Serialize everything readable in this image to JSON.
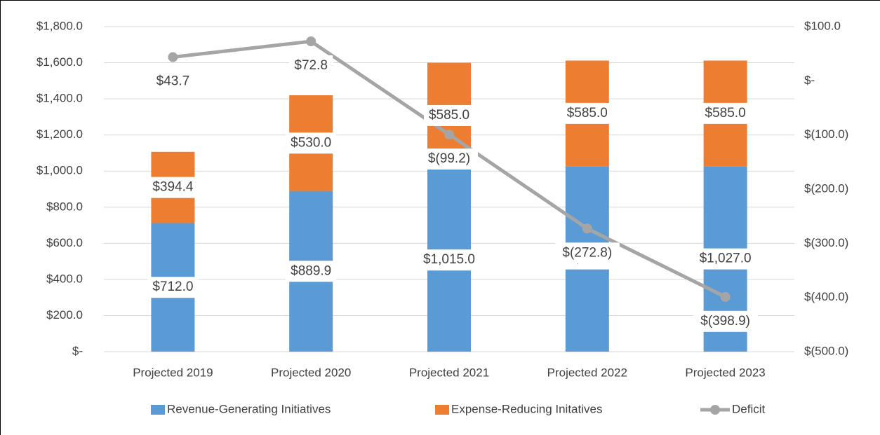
{
  "chart_data": {
    "type": "stacked-bar-line",
    "categories": [
      "Projected 2019",
      "Projected 2020",
      "Projected 2021",
      "Projected 2022",
      "Projected 2023"
    ],
    "series": [
      {
        "name": "Revenue-Generating Initiatives",
        "color": "#5b9bd5",
        "values": [
          712.0,
          889.9,
          1015.0,
          1027.0,
          1027.0
        ],
        "value_labels": [
          "$712.0",
          "$889.9",
          "$1,015.0",
          "$1,027.0",
          "$1,027.0"
        ]
      },
      {
        "name": "Expense-Reducing Initatives",
        "color": "#ed7d31",
        "values": [
          394.4,
          530.0,
          585.0,
          585.0,
          585.0
        ],
        "value_labels": [
          "$394.4",
          "$530.0",
          "$585.0",
          "$585.0",
          "$585.0"
        ]
      },
      {
        "name": "Deficit",
        "color": "#a5a5a5",
        "axis": "y2",
        "values": [
          43.7,
          72.8,
          -99.2,
          -272.8,
          -398.9
        ],
        "value_labels": [
          "$43.7",
          "$72.8",
          "$(99.2)",
          "$(272.8)",
          "$(398.9)"
        ]
      }
    ],
    "ylim": [
      0,
      1800
    ],
    "yticks": [
      {
        "value": 0,
        "label": "$-"
      },
      {
        "value": 200,
        "label": "$200.0"
      },
      {
        "value": 400,
        "label": "$400.0"
      },
      {
        "value": 600,
        "label": "$600.0"
      },
      {
        "value": 800,
        "label": "$800.0"
      },
      {
        "value": 1000,
        "label": "$1,000.0"
      },
      {
        "value": 1200,
        "label": "$1,200.0"
      },
      {
        "value": 1400,
        "label": "$1,400.0"
      },
      {
        "value": 1600,
        "label": "$1,600.0"
      },
      {
        "value": 1800,
        "label": "$1,800.0"
      }
    ],
    "y2lim": [
      -500,
      100
    ],
    "y2ticks": [
      {
        "value": -500,
        "label": "$(500.0)"
      },
      {
        "value": -400,
        "label": "$(400.0)"
      },
      {
        "value": -300,
        "label": "$(300.0)"
      },
      {
        "value": -200,
        "label": "$(200.0)"
      },
      {
        "value": -100,
        "label": "$(100.0)"
      },
      {
        "value": 0,
        "label": "$-"
      },
      {
        "value": 100,
        "label": "$100.0"
      }
    ],
    "grid": true,
    "legend": "bottom"
  }
}
